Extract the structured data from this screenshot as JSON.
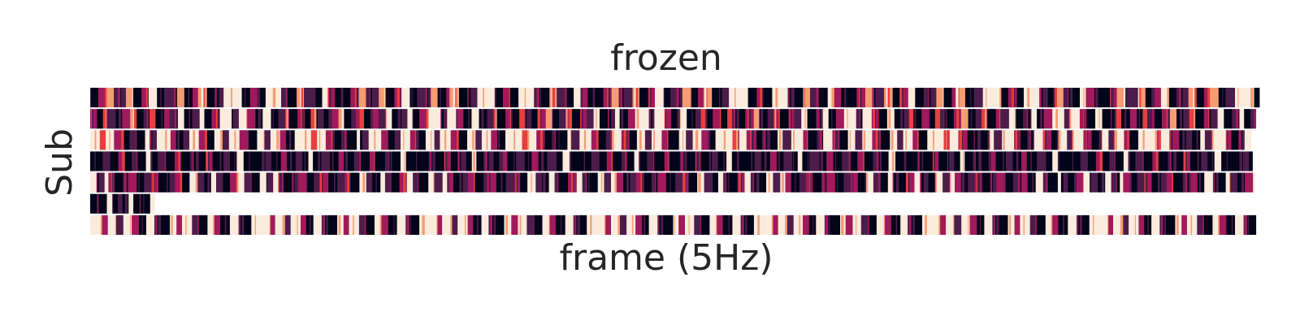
{
  "chart_data": {
    "type": "heatmap",
    "title": "frozen",
    "xlabel": "frame (5Hz)",
    "ylabel": "Sub",
    "n_rows": 7,
    "x_ticks": "none",
    "y_ticks": "none",
    "colormap": "rocket",
    "colormap_stops": [
      "#03051a",
      "#4c1d4b",
      "#a11a5b",
      "#e83f3f",
      "#f69c73",
      "#faebdd"
    ],
    "rows": [
      {
        "length": 1.0,
        "blocks": [
          [
            1,
            5
          ],
          [
            3,
            5
          ],
          [
            5,
            5
          ],
          [
            2,
            8
          ],
          [
            5,
            5
          ],
          [
            1,
            5
          ],
          [
            3,
            5
          ],
          [
            6,
            5
          ],
          [
            1,
            5
          ],
          [
            2,
            8
          ],
          [
            5,
            5
          ],
          [
            1,
            5
          ],
          [
            3,
            3
          ],
          [
            5,
            6
          ],
          [
            1,
            5
          ],
          [
            2,
            6
          ],
          [
            6,
            12
          ],
          [
            1,
            5
          ],
          [
            3,
            5
          ],
          [
            1,
            5
          ],
          [
            6,
            10
          ],
          [
            2,
            5
          ],
          [
            1,
            5
          ],
          [
            5,
            5
          ],
          [
            2,
            6
          ],
          [
            1,
            5
          ],
          [
            6,
            4
          ],
          [
            3,
            5
          ],
          [
            1,
            5
          ]
        ]
      },
      {
        "length": 0.997,
        "blocks": [
          [
            3,
            5
          ],
          [
            1,
            4
          ],
          [
            4,
            3
          ],
          [
            2,
            5
          ],
          [
            1,
            4
          ],
          [
            3,
            5
          ],
          [
            5,
            4
          ],
          [
            1,
            5
          ],
          [
            2,
            4
          ],
          [
            4,
            4
          ],
          [
            1,
            5
          ],
          [
            3,
            4
          ],
          [
            2,
            5
          ],
          [
            6,
            4
          ],
          [
            1,
            5
          ],
          [
            2,
            5
          ],
          [
            6,
            3
          ],
          [
            1,
            5
          ],
          [
            3,
            5
          ],
          [
            6,
            8
          ],
          [
            2,
            4
          ],
          [
            6,
            6
          ],
          [
            3,
            5
          ],
          [
            1,
            5
          ],
          [
            6,
            5
          ],
          [
            1,
            5
          ],
          [
            2,
            4
          ],
          [
            4,
            3
          ],
          [
            1,
            5
          ]
        ]
      },
      {
        "length": 0.993,
        "blocks": [
          [
            6,
            6
          ],
          [
            4,
            4
          ],
          [
            6,
            5
          ],
          [
            3,
            6
          ],
          [
            1,
            4
          ],
          [
            2,
            5
          ],
          [
            1,
            5
          ],
          [
            6,
            3
          ],
          [
            2,
            5
          ],
          [
            6,
            8
          ],
          [
            3,
            4
          ],
          [
            1,
            5
          ],
          [
            2,
            4
          ],
          [
            6,
            6
          ],
          [
            3,
            5
          ],
          [
            1,
            5
          ],
          [
            6,
            5
          ],
          [
            2,
            4
          ],
          [
            6,
            7
          ],
          [
            3,
            5
          ],
          [
            1,
            6
          ],
          [
            6,
            5
          ],
          [
            2,
            4
          ],
          [
            6,
            6
          ],
          [
            3,
            4
          ],
          [
            1,
            5
          ],
          [
            6,
            5
          ]
        ]
      },
      {
        "length": 0.994,
        "blocks": [
          [
            1,
            8
          ],
          [
            2,
            4
          ],
          [
            1,
            6
          ],
          [
            3,
            4
          ],
          [
            1,
            5
          ],
          [
            2,
            5
          ],
          [
            1,
            4
          ],
          [
            6,
            3
          ],
          [
            1,
            5
          ],
          [
            2,
            6
          ],
          [
            1,
            5
          ],
          [
            3,
            4
          ],
          [
            1,
            6
          ],
          [
            2,
            5
          ],
          [
            1,
            5
          ],
          [
            3,
            4
          ],
          [
            1,
            6
          ],
          [
            2,
            5
          ],
          [
            1,
            5
          ],
          [
            6,
            4
          ],
          [
            1,
            6
          ]
        ]
      },
      {
        "length": 0.996,
        "blocks": [
          [
            6,
            4
          ],
          [
            2,
            5
          ],
          [
            6,
            3
          ],
          [
            3,
            4
          ],
          [
            1,
            5
          ],
          [
            2,
            4
          ],
          [
            3,
            5
          ],
          [
            1,
            5
          ],
          [
            2,
            4
          ],
          [
            3,
            5
          ],
          [
            1,
            6
          ],
          [
            2,
            5
          ],
          [
            3,
            4
          ],
          [
            1,
            5
          ],
          [
            6,
            5
          ],
          [
            2,
            4
          ],
          [
            1,
            5
          ],
          [
            6,
            3
          ],
          [
            2,
            4
          ],
          [
            1,
            5
          ],
          [
            3,
            5
          ],
          [
            6,
            4
          ],
          [
            2,
            5
          ],
          [
            1,
            5
          ]
        ]
      },
      {
        "length": 0.055,
        "blocks": [
          [
            1,
            4
          ],
          [
            2,
            3
          ],
          [
            1,
            4
          ],
          [
            6,
            3
          ]
        ]
      },
      {
        "length": 0.997,
        "blocks": [
          [
            6,
            8
          ],
          [
            3,
            3
          ],
          [
            6,
            6
          ],
          [
            2,
            4
          ],
          [
            6,
            6
          ],
          [
            3,
            4
          ],
          [
            1,
            5
          ],
          [
            6,
            5
          ],
          [
            2,
            4
          ],
          [
            1,
            6
          ],
          [
            6,
            4
          ],
          [
            3,
            4
          ],
          [
            6,
            6
          ],
          [
            2,
            5
          ],
          [
            1,
            5
          ],
          [
            6,
            5
          ],
          [
            3,
            4
          ],
          [
            1,
            6
          ],
          [
            6,
            5
          ],
          [
            2,
            4
          ],
          [
            1,
            5
          ],
          [
            6,
            4
          ]
        ]
      }
    ]
  }
}
